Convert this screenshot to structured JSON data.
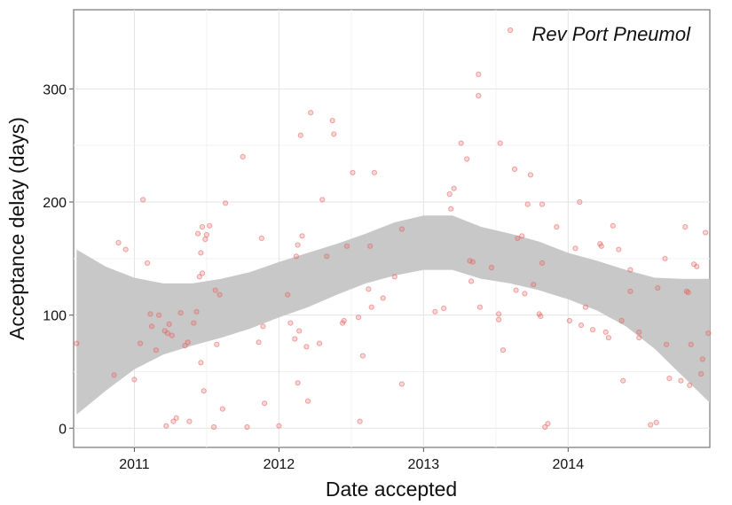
{
  "chart_data": {
    "type": "scatter",
    "title": "",
    "annotation": "Rev Port Pneumol",
    "xlabel": "Date accepted",
    "ylabel": "Acceptance delay (days)",
    "x_ticks": [
      "2011",
      "2012",
      "2013",
      "2014"
    ],
    "y_ticks": [
      0,
      100,
      200,
      300
    ],
    "xlim": [
      2010.58,
      2014.98
    ],
    "ylim": [
      -17,
      370
    ],
    "grid": true,
    "point_color": "#e8605c",
    "band_color": "#c8c8c8",
    "points": [
      [
        2010.6,
        75
      ],
      [
        2010.86,
        47
      ],
      [
        2010.89,
        164
      ],
      [
        2010.94,
        158
      ],
      [
        2011.0,
        43
      ],
      [
        2011.04,
        75
      ],
      [
        2011.06,
        202
      ],
      [
        2011.09,
        146
      ],
      [
        2011.11,
        101
      ],
      [
        2011.12,
        90
      ],
      [
        2011.15,
        69
      ],
      [
        2011.17,
        100
      ],
      [
        2011.21,
        86
      ],
      [
        2011.22,
        2
      ],
      [
        2011.23,
        84
      ],
      [
        2011.24,
        92
      ],
      [
        2011.26,
        82
      ],
      [
        2011.27,
        6
      ],
      [
        2011.29,
        9
      ],
      [
        2011.32,
        102
      ],
      [
        2011.35,
        73
      ],
      [
        2011.37,
        76
      ],
      [
        2011.38,
        6
      ],
      [
        2011.41,
        93
      ],
      [
        2011.43,
        103
      ],
      [
        2011.44,
        172
      ],
      [
        2011.45,
        134
      ],
      [
        2011.46,
        58
      ],
      [
        2011.46,
        155
      ],
      [
        2011.47,
        178
      ],
      [
        2011.47,
        137
      ],
      [
        2011.48,
        33
      ],
      [
        2011.49,
        167
      ],
      [
        2011.5,
        171
      ],
      [
        2011.52,
        179
      ],
      [
        2011.55,
        1
      ],
      [
        2011.56,
        122
      ],
      [
        2011.57,
        74
      ],
      [
        2011.59,
        118
      ],
      [
        2011.61,
        17
      ],
      [
        2011.63,
        199
      ],
      [
        2011.75,
        240
      ],
      [
        2011.78,
        1
      ],
      [
        2011.86,
        76
      ],
      [
        2011.88,
        168
      ],
      [
        2011.89,
        90
      ],
      [
        2011.9,
        22
      ],
      [
        2012.0,
        2
      ],
      [
        2012.06,
        118
      ],
      [
        2012.08,
        93
      ],
      [
        2012.11,
        79
      ],
      [
        2012.12,
        152
      ],
      [
        2012.13,
        162
      ],
      [
        2012.13,
        40
      ],
      [
        2012.14,
        86
      ],
      [
        2012.15,
        259
      ],
      [
        2012.16,
        170
      ],
      [
        2012.19,
        72
      ],
      [
        2012.2,
        24
      ],
      [
        2012.22,
        279
      ],
      [
        2012.28,
        75
      ],
      [
        2012.3,
        202
      ],
      [
        2012.33,
        152
      ],
      [
        2012.37,
        272
      ],
      [
        2012.38,
        260
      ],
      [
        2012.44,
        93
      ],
      [
        2012.45,
        95
      ],
      [
        2012.47,
        161
      ],
      [
        2012.51,
        226
      ],
      [
        2012.55,
        98
      ],
      [
        2012.56,
        6
      ],
      [
        2012.58,
        64
      ],
      [
        2012.62,
        123
      ],
      [
        2012.63,
        161
      ],
      [
        2012.64,
        107
      ],
      [
        2012.66,
        226
      ],
      [
        2012.72,
        115
      ],
      [
        2012.8,
        134
      ],
      [
        2012.85,
        39
      ],
      [
        2012.85,
        176
      ],
      [
        2013.08,
        103
      ],
      [
        2013.14,
        106
      ],
      [
        2013.18,
        207
      ],
      [
        2013.19,
        194
      ],
      [
        2013.21,
        212
      ],
      [
        2013.26,
        252
      ],
      [
        2013.3,
        238
      ],
      [
        2013.32,
        148
      ],
      [
        2013.33,
        130
      ],
      [
        2013.34,
        147
      ],
      [
        2013.38,
        313
      ],
      [
        2013.38,
        294
      ],
      [
        2013.39,
        107
      ],
      [
        2013.47,
        142
      ],
      [
        2013.52,
        101
      ],
      [
        2013.52,
        96
      ],
      [
        2013.53,
        252
      ],
      [
        2013.55,
        69
      ],
      [
        2013.6,
        352
      ],
      [
        2013.63,
        229
      ],
      [
        2013.64,
        122
      ],
      [
        2013.65,
        168
      ],
      [
        2013.68,
        170
      ],
      [
        2013.7,
        119
      ],
      [
        2013.72,
        198
      ],
      [
        2013.74,
        224
      ],
      [
        2013.76,
        127
      ],
      [
        2013.8,
        101
      ],
      [
        2013.81,
        99
      ],
      [
        2013.82,
        146
      ],
      [
        2013.82,
        198
      ],
      [
        2013.84,
        1
      ],
      [
        2013.86,
        4
      ],
      [
        2013.92,
        178
      ],
      [
        2014.01,
        95
      ],
      [
        2014.05,
        159
      ],
      [
        2014.08,
        200
      ],
      [
        2014.09,
        91
      ],
      [
        2014.12,
        107
      ],
      [
        2014.17,
        87
      ],
      [
        2014.22,
        163
      ],
      [
        2014.23,
        161
      ],
      [
        2014.26,
        85
      ],
      [
        2014.28,
        80
      ],
      [
        2014.31,
        179
      ],
      [
        2014.35,
        158
      ],
      [
        2014.37,
        95
      ],
      [
        2014.38,
        42
      ],
      [
        2014.43,
        140
      ],
      [
        2014.43,
        121
      ],
      [
        2014.49,
        85
      ],
      [
        2014.49,
        80
      ],
      [
        2014.57,
        3
      ],
      [
        2014.61,
        5
      ],
      [
        2014.62,
        124
      ],
      [
        2014.67,
        150
      ],
      [
        2014.68,
        74
      ],
      [
        2014.7,
        44
      ],
      [
        2014.78,
        42
      ],
      [
        2014.81,
        178
      ],
      [
        2014.82,
        121
      ],
      [
        2014.83,
        120
      ],
      [
        2014.84,
        38
      ],
      [
        2014.85,
        74
      ],
      [
        2014.87,
        145
      ],
      [
        2014.89,
        143
      ],
      [
        2014.92,
        48
      ],
      [
        2014.93,
        61
      ],
      [
        2014.95,
        173
      ],
      [
        2014.97,
        84
      ]
    ],
    "band": {
      "x": [
        2010.6,
        2010.8,
        2011.0,
        2011.2,
        2011.4,
        2011.6,
        2011.8,
        2012.0,
        2012.2,
        2012.4,
        2012.6,
        2012.8,
        2013.0,
        2013.2,
        2013.4,
        2013.6,
        2013.8,
        2014.0,
        2014.2,
        2014.4,
        2014.6,
        2014.8,
        2015.0
      ],
      "upper": [
        158,
        143,
        133,
        128,
        128,
        132,
        138,
        147,
        155,
        163,
        172,
        182,
        188,
        188,
        178,
        172,
        165,
        155,
        148,
        140,
        133,
        132,
        132
      ],
      "lower": [
        12,
        33,
        52,
        65,
        73,
        80,
        88,
        98,
        107,
        118,
        128,
        135,
        140,
        140,
        132,
        128,
        122,
        114,
        104,
        90,
        70,
        45,
        20
      ]
    }
  }
}
